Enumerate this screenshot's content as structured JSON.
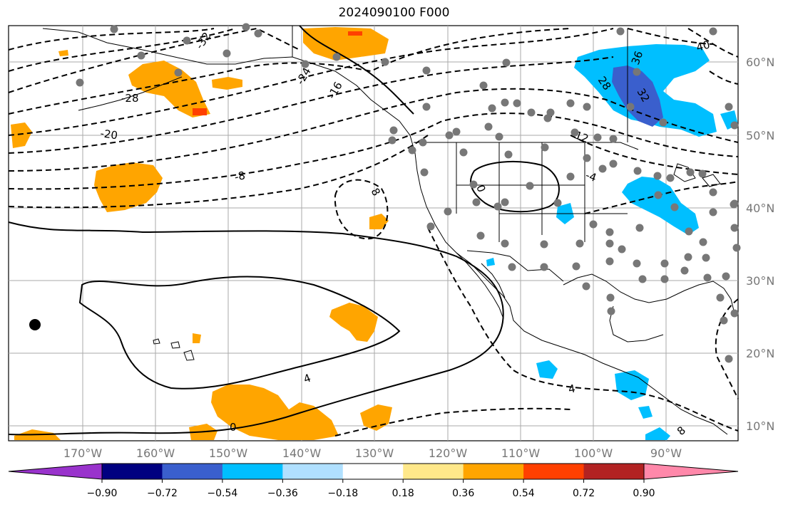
{
  "title": "2024090100 F000",
  "map": {
    "lat_labels": [
      "60°N",
      "50°N",
      "40°N",
      "30°N",
      "20°N",
      "10°N"
    ],
    "lon_labels": [
      "170°W",
      "160°W",
      "150°W",
      "140°W",
      "130°W",
      "120°W",
      "110°W",
      "100°W",
      "90°W"
    ],
    "contour_labels": [
      "-32",
      "-28",
      "-24",
      "-20",
      "-16",
      "-12",
      "-8",
      "-4",
      "0",
      "4",
      "8",
      "28",
      "32",
      "36",
      "40"
    ],
    "station_marker": "gray dots"
  },
  "colorbar": {
    "ticks": [
      "−0.90",
      "−0.72",
      "−0.54",
      "−0.36",
      "−0.18",
      "0.18",
      "0.36",
      "0.54",
      "0.72",
      "0.90"
    ],
    "colors": [
      "#9933cc",
      "#000080",
      "#3a5fcd",
      "#00bfff",
      "#b0e0ff",
      "#ffffff",
      "#ffe88a",
      "#ffa500",
      "#ff4000",
      "#b22222",
      "#ff88aa"
    ]
  }
}
